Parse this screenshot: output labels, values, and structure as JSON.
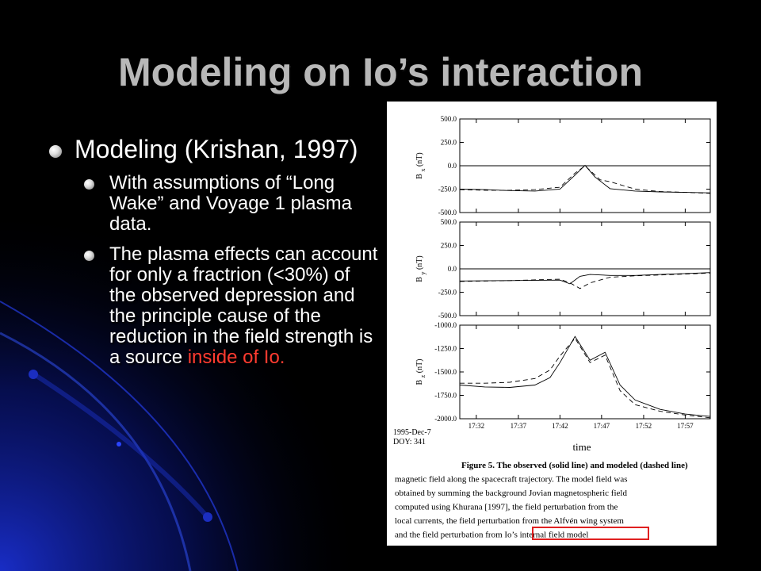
{
  "slide": {
    "title": "Modeling on Io’s interaction",
    "bullet_main": "Modeling (Krishan, 1997)",
    "bullet_sub1": "With assumptions of “Long Wake” and Voyage 1 plasma data.",
    "bullet_sub2_prefix": "The plasma effects can account for only a fractrion (<30%) of the observed depression and the principle cause of the reduction in the field strength is a source ",
    "bullet_sub2_highlight": "inside of Io.",
    "highlight_color": "#ff3b30"
  },
  "figure": {
    "date_label": "1995-Dec-7",
    "doy_label": "DOY: 341",
    "x_axis_label": "time",
    "caption_lines": [
      "Figure 5. The observed (solid line) and modeled (dashed line)",
      "magnetic field along the spacecraft trajectory.  The model field was",
      "obtained by summing  the background Jovian magnetospheric field",
      "computed using Khurana [1997], the field perturbation from the",
      "local currents, the field perturbation from the Alfvén wing system",
      "and the field perturbation from Io’s internal field model"
    ],
    "caption_box_color": "#e02020"
  },
  "chart_data": [
    {
      "type": "line",
      "ylabel_main": "B",
      "ylabel_sub": "x",
      "ylabel_unit": "(nT)",
      "ylim": [
        -500,
        500
      ],
      "yticks": [
        500,
        250,
        0,
        -250,
        -500
      ],
      "ytick_labels": [
        "500.0",
        "250.0",
        "0.0",
        "-250.0",
        "-500.0"
      ],
      "xlim": [
        17.5,
        18.0
      ],
      "xticks": [
        "17:32",
        "17:37",
        "17:42",
        "17:47",
        "17:52",
        "17:57"
      ],
      "xtick_values": [
        17.533,
        17.617,
        17.7,
        17.783,
        17.867,
        17.95
      ],
      "series": [
        {
          "style": "solid",
          "x": [
            17.5,
            17.55,
            17.6,
            17.65,
            17.7,
            17.73,
            17.75,
            17.77,
            17.8,
            17.85,
            17.9,
            17.95,
            18.0
          ],
          "y": [
            -250,
            -255,
            -265,
            -270,
            -250,
            -100,
            5,
            -120,
            -245,
            -270,
            -280,
            -285,
            -290
          ]
        },
        {
          "style": "dashed",
          "x": [
            17.5,
            17.55,
            17.6,
            17.65,
            17.7,
            17.73,
            17.75,
            17.78,
            17.8,
            17.85,
            17.9,
            17.95,
            18.0
          ],
          "y": [
            -255,
            -262,
            -262,
            -255,
            -230,
            -80,
            0,
            -150,
            -170,
            -250,
            -275,
            -285,
            -295
          ]
        },
        {
          "style": "solid",
          "x": [
            17.5,
            18.0
          ],
          "y": [
            0,
            0
          ]
        }
      ]
    },
    {
      "type": "line",
      "ylabel_main": "B",
      "ylabel_sub": "y",
      "ylabel_unit": "(nT)",
      "ylim": [
        -500,
        500
      ],
      "yticks": [
        500,
        250,
        0,
        -250,
        -500
      ],
      "ytick_labels": [
        "500.0",
        "250.0",
        "0.0",
        "-250.0",
        "-500.0"
      ],
      "xlim": [
        17.5,
        18.0
      ],
      "xticks": [
        "17:32",
        "17:37",
        "17:42",
        "17:47",
        "17:52",
        "17:57"
      ],
      "xtick_values": [
        17.533,
        17.617,
        17.7,
        17.783,
        17.867,
        17.95
      ],
      "series": [
        {
          "style": "solid",
          "x": [
            17.5,
            17.6,
            17.7,
            17.72,
            17.74,
            17.76,
            17.8,
            17.85,
            17.9,
            17.95,
            18.0
          ],
          "y": [
            -130,
            -125,
            -120,
            -160,
            -80,
            -60,
            -70,
            -70,
            -60,
            -50,
            -40
          ]
        },
        {
          "style": "dashed",
          "x": [
            17.5,
            17.6,
            17.7,
            17.72,
            17.74,
            17.76,
            17.8,
            17.85,
            17.9,
            17.95,
            18.0
          ],
          "y": [
            -135,
            -125,
            -110,
            -150,
            -210,
            -150,
            -90,
            -75,
            -65,
            -55,
            -45
          ]
        },
        {
          "style": "solid",
          "x": [
            17.5,
            18.0
          ],
          "y": [
            0,
            0
          ]
        }
      ]
    },
    {
      "type": "line",
      "ylabel_main": "B",
      "ylabel_sub": "z",
      "ylabel_unit": "(nT)",
      "ylim": [
        -2000,
        -1000
      ],
      "yticks": [
        -1000,
        -1250,
        -1500,
        -1750,
        -2000
      ],
      "ytick_labels": [
        "-1000.0",
        "-1250.0",
        "-1500.0",
        "-1750.0",
        "-2000.0"
      ],
      "xlim": [
        17.5,
        18.0
      ],
      "xticks": [
        "17:32",
        "17:37",
        "17:42",
        "17:47",
        "17:52",
        "17:57"
      ],
      "xtick_values": [
        17.533,
        17.617,
        17.7,
        17.783,
        17.867,
        17.95
      ],
      "series": [
        {
          "style": "solid",
          "x": [
            17.5,
            17.55,
            17.6,
            17.65,
            17.68,
            17.7,
            17.73,
            17.76,
            17.79,
            17.82,
            17.85,
            17.9,
            17.95,
            18.0
          ],
          "y": [
            -1640,
            -1660,
            -1665,
            -1640,
            -1560,
            -1400,
            -1120,
            -1375,
            -1290,
            -1640,
            -1800,
            -1900,
            -1950,
            -1975
          ]
        },
        {
          "style": "dashed",
          "x": [
            17.5,
            17.55,
            17.6,
            17.65,
            17.68,
            17.7,
            17.73,
            17.76,
            17.79,
            17.82,
            17.85,
            17.9,
            17.95,
            18.0
          ],
          "y": [
            -1620,
            -1620,
            -1610,
            -1570,
            -1480,
            -1330,
            -1140,
            -1400,
            -1320,
            -1700,
            -1850,
            -1920,
            -1960,
            -1990
          ]
        }
      ]
    }
  ]
}
